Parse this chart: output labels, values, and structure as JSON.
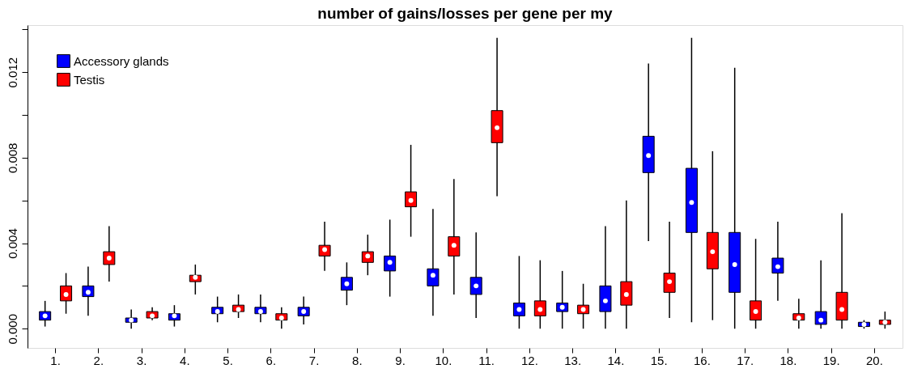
{
  "chart_data": {
    "type": "box",
    "title": "number of gains/losses per gene per my",
    "categories": [
      "1.",
      "2.",
      "3.",
      "4.",
      "5.",
      "6.",
      "7.",
      "8.",
      "9.",
      "10.",
      "11.",
      "12.",
      "13.",
      "14.",
      "15.",
      "16.",
      "17.",
      "18.",
      "19.",
      "20."
    ],
    "ylim": [
      -0.0009,
      0.0142
    ],
    "yticks": [
      {
        "value": 0,
        "label": "0.000"
      },
      {
        "value": 0.002,
        "label": null
      },
      0.004,
      {
        "value": 0.006,
        "label": null
      },
      0.008,
      {
        "value": 0.01,
        "label": null
      },
      0.012,
      {
        "value": 0.014,
        "label": null
      }
    ],
    "grid": false,
    "legend": "top left",
    "series": [
      {
        "name": "Accessory glands",
        "color": "#0000ff",
        "boxes": [
          {
            "low": 0.0001,
            "q1": 0.0004,
            "median": 0.0006,
            "q3": 0.0008,
            "high": 0.0013
          },
          {
            "low": 0.0006,
            "q1": 0.0015,
            "median": 0.0017,
            "q3": 0.002,
            "high": 0.0029
          },
          {
            "low": 0.0,
            "q1": 0.0003,
            "median": 0.0004,
            "q3": 0.0005,
            "high": 0.0009
          },
          {
            "low": 0.0001,
            "q1": 0.0004,
            "median": 0.0006,
            "q3": 0.0007,
            "high": 0.0011
          },
          {
            "low": 0.0003,
            "q1": 0.0007,
            "median": 0.0008,
            "q3": 0.001,
            "high": 0.0015
          },
          {
            "low": 0.0003,
            "q1": 0.0007,
            "median": 0.0008,
            "q3": 0.001,
            "high": 0.0016
          },
          {
            "low": 0.0002,
            "q1": 0.0006,
            "median": 0.0008,
            "q3": 0.001,
            "high": 0.0015
          },
          {
            "low": 0.0011,
            "q1": 0.0018,
            "median": 0.0021,
            "q3": 0.0024,
            "high": 0.0031
          },
          {
            "low": 0.0015,
            "q1": 0.0027,
            "median": 0.0031,
            "q3": 0.0034,
            "high": 0.0051
          },
          {
            "low": 0.0006,
            "q1": 0.002,
            "median": 0.0025,
            "q3": 0.0028,
            "high": 0.0056
          },
          {
            "low": 0.0005,
            "q1": 0.0016,
            "median": 0.002,
            "q3": 0.0024,
            "high": 0.0045
          },
          {
            "low": 0.0,
            "q1": 0.0006,
            "median": 0.0009,
            "q3": 0.0012,
            "high": 0.0034
          },
          {
            "low": 0.0,
            "q1": 0.0008,
            "median": 0.001,
            "q3": 0.0012,
            "high": 0.0027
          },
          {
            "low": 0.0,
            "q1": 0.0008,
            "median": 0.0013,
            "q3": 0.002,
            "high": 0.0048
          },
          {
            "low": 0.0041,
            "q1": 0.0073,
            "median": 0.0081,
            "q3": 0.009,
            "high": 0.0124
          },
          {
            "low": 0.0003,
            "q1": 0.0045,
            "median": 0.0059,
            "q3": 0.0075,
            "high": 0.0136
          },
          {
            "low": 0.0,
            "q1": 0.0017,
            "median": 0.003,
            "q3": 0.0045,
            "high": 0.0122
          },
          {
            "low": 0.0013,
            "q1": 0.0026,
            "median": 0.0029,
            "q3": 0.0033,
            "high": 0.005
          },
          {
            "low": 0.0,
            "q1": 0.0002,
            "median": 0.0004,
            "q3": 0.0008,
            "high": 0.0032
          },
          {
            "low": 0.0,
            "q1": 0.0001,
            "median": 0.0002,
            "q3": 0.0003,
            "high": 0.0004
          }
        ]
      },
      {
        "name": "Testis",
        "color": "#ff0000",
        "boxes": [
          {
            "low": 0.0007,
            "q1": 0.0013,
            "median": 0.0016,
            "q3": 0.002,
            "high": 0.0026
          },
          {
            "low": 0.0022,
            "q1": 0.003,
            "median": 0.0033,
            "q3": 0.0036,
            "high": 0.0048
          },
          {
            "low": 0.0004,
            "q1": 0.0005,
            "median": 0.0006,
            "q3": 0.0008,
            "high": 0.001
          },
          {
            "low": 0.0016,
            "q1": 0.0022,
            "median": 0.0024,
            "q3": 0.0025,
            "high": 0.003
          },
          {
            "low": 0.0005,
            "q1": 0.0008,
            "median": 0.0009,
            "q3": 0.0011,
            "high": 0.0016
          },
          {
            "low": 0.0,
            "q1": 0.0004,
            "median": 0.0005,
            "q3": 0.0007,
            "high": 0.001
          },
          {
            "low": 0.0027,
            "q1": 0.0034,
            "median": 0.0037,
            "q3": 0.0039,
            "high": 0.005
          },
          {
            "low": 0.0025,
            "q1": 0.0031,
            "median": 0.0034,
            "q3": 0.0036,
            "high": 0.0044
          },
          {
            "low": 0.0043,
            "q1": 0.0057,
            "median": 0.006,
            "q3": 0.0064,
            "high": 0.0086
          },
          {
            "low": 0.0016,
            "q1": 0.0034,
            "median": 0.0039,
            "q3": 0.0043,
            "high": 0.007
          },
          {
            "low": 0.0062,
            "q1": 0.0087,
            "median": 0.0094,
            "q3": 0.0102,
            "high": 0.0136
          },
          {
            "low": 0.0,
            "q1": 0.0006,
            "median": 0.0009,
            "q3": 0.0013,
            "high": 0.0032
          },
          {
            "low": 0.0,
            "q1": 0.0007,
            "median": 0.0009,
            "q3": 0.0011,
            "high": 0.0021
          },
          {
            "low": 0.0,
            "q1": 0.0011,
            "median": 0.0016,
            "q3": 0.0022,
            "high": 0.006
          },
          {
            "low": 0.0005,
            "q1": 0.0017,
            "median": 0.0022,
            "q3": 0.0026,
            "high": 0.005
          },
          {
            "low": 0.0004,
            "q1": 0.0028,
            "median": 0.0036,
            "q3": 0.0045,
            "high": 0.0083
          },
          {
            "low": 0.0,
            "q1": 0.0004,
            "median": 0.0008,
            "q3": 0.0013,
            "high": 0.0042
          },
          {
            "low": 0.0,
            "q1": 0.0004,
            "median": 0.0005,
            "q3": 0.0007,
            "high": 0.0014
          },
          {
            "low": 0.0,
            "q1": 0.0004,
            "median": 0.0009,
            "q3": 0.0017,
            "high": 0.0054
          },
          {
            "low": 0.0,
            "q1": 0.0002,
            "median": 0.0003,
            "q3": 0.0004,
            "high": 0.0008
          }
        ]
      }
    ]
  }
}
